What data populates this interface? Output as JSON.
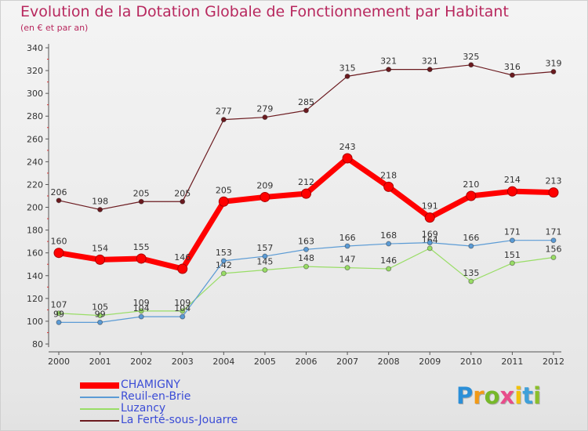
{
  "chart_data": {
    "type": "line",
    "title": "Evolution de la Dotation Globale de Fonctionnement par Habitant",
    "subtitle": "(en € et par an)",
    "xlabel": "",
    "ylabel": "",
    "categories": [
      "2000",
      "2001",
      "2002",
      "2003",
      "2004",
      "2005",
      "2006",
      "2007",
      "2008",
      "2009",
      "2010",
      "2011",
      "2012"
    ],
    "ylim": [
      80,
      340
    ],
    "yticks": [
      80,
      100,
      120,
      140,
      160,
      180,
      200,
      220,
      240,
      260,
      280,
      300,
      320,
      340
    ],
    "grid": false,
    "legend_position": "bottom-left",
    "series": [
      {
        "name": "La Ferté-sous-Jouarre",
        "color": "#6b1a1f",
        "values": [
          206,
          198,
          205,
          205,
          277,
          279,
          285,
          315,
          321,
          321,
          325,
          316,
          319
        ]
      },
      {
        "name": "Luzancy",
        "color": "#99dd66",
        "values": [
          107,
          105,
          109,
          109,
          142,
          145,
          148,
          147,
          146,
          164,
          135,
          151,
          156
        ]
      },
      {
        "name": "Reuil-en-Brie",
        "color": "#5b9bd5",
        "values": [
          99,
          99,
          104,
          104,
          153,
          157,
          163,
          166,
          168,
          169,
          166,
          171,
          171
        ]
      },
      {
        "name": "CHAMIGNY",
        "color": "#ff0000",
        "values": [
          160,
          154,
          155,
          146,
          205,
          209,
          212,
          243,
          218,
          191,
          210,
          214,
          213
        ]
      }
    ]
  },
  "legend_order": [
    "CHAMIGNY",
    "Reuil-en-Brie",
    "Luzancy",
    "La Ferté-sous-Jouarre"
  ],
  "logo": {
    "text": "Proxiti",
    "letters": [
      "P",
      "r",
      "o",
      "x",
      "i",
      "t",
      "i"
    ],
    "colors": [
      "#2b8fd8",
      "#f29a17",
      "#77b82a",
      "#e84c8a",
      "#f2c20b",
      "#3fa0d9",
      "#8bbf2a"
    ]
  }
}
